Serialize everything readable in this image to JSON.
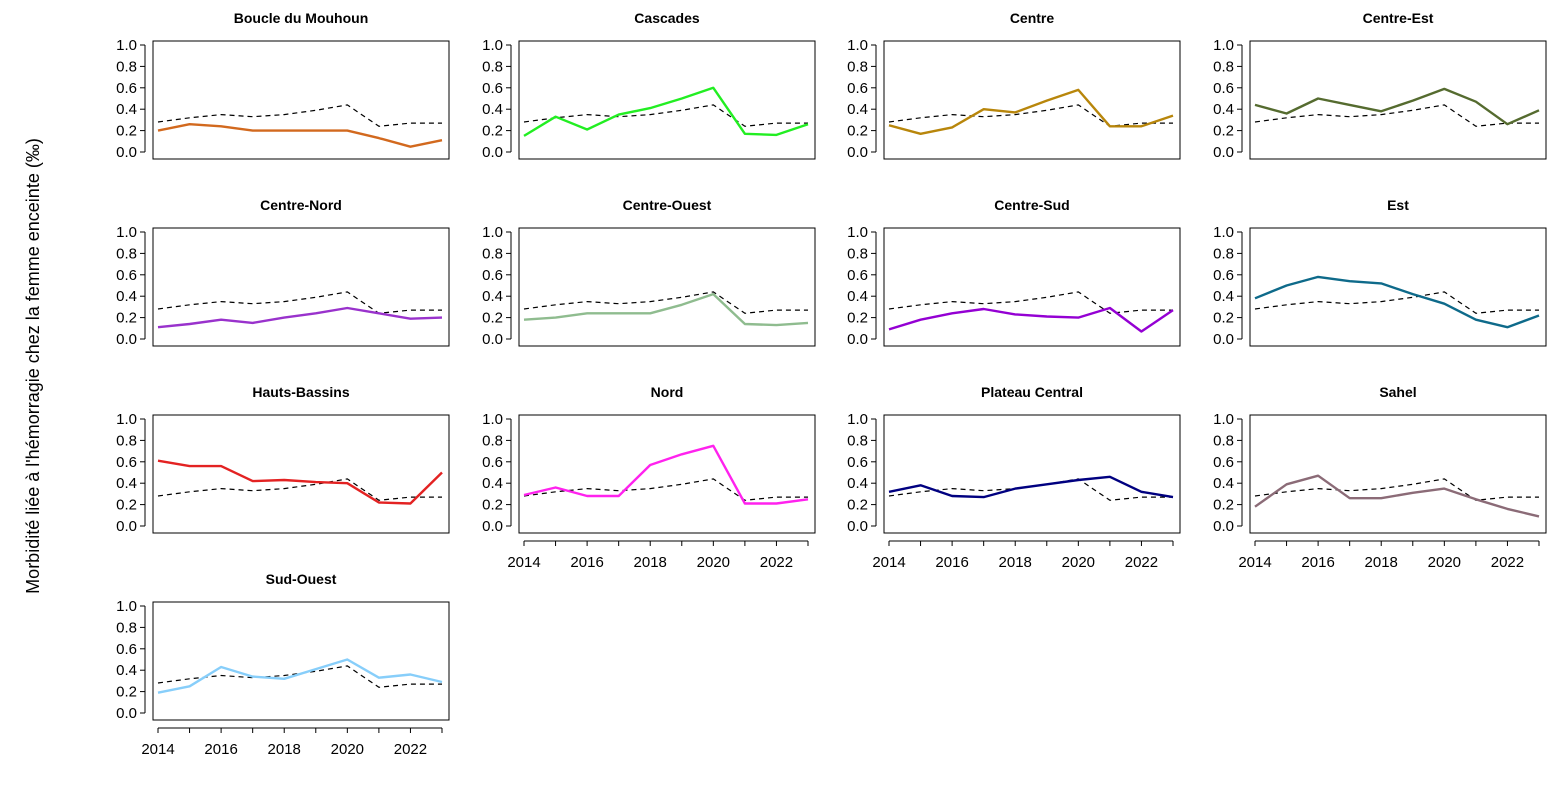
{
  "ylabel": "Morbidité liée à l'hémorragie chez la femme enceinte (‰)",
  "chart_data": {
    "type": "line",
    "x": [
      2014,
      2015,
      2016,
      2017,
      2018,
      2019,
      2020,
      2021,
      2022,
      2023
    ],
    "x_tick_labels": [
      "2014",
      "2016",
      "2018",
      "2020",
      "2022"
    ],
    "y_tick_labels": [
      "0.0",
      "0.2",
      "0.4",
      "0.6",
      "0.8",
      "1.0"
    ],
    "ylim": [
      0,
      1.0
    ],
    "xlim": [
      2014,
      2023
    ],
    "grid": false,
    "reference_series": {
      "style": "dashed",
      "color": "#000000",
      "values": [
        0.28,
        0.32,
        0.35,
        0.33,
        0.35,
        0.39,
        0.44,
        0.24,
        0.27,
        0.27
      ]
    },
    "panels": [
      {
        "title": "Boucle du Mouhoun",
        "color": "#D2691E",
        "values": [
          0.2,
          0.26,
          0.24,
          0.2,
          0.2,
          0.2,
          0.2,
          0.13,
          0.05,
          0.11
        ],
        "show_xaxis": false
      },
      {
        "title": "Cascades",
        "color": "#22EE22",
        "values": [
          0.15,
          0.33,
          0.21,
          0.35,
          0.41,
          0.5,
          0.6,
          0.17,
          0.16,
          0.26
        ],
        "show_xaxis": false
      },
      {
        "title": "Centre",
        "color": "#B8860B",
        "values": [
          0.25,
          0.17,
          0.23,
          0.4,
          0.37,
          0.48,
          0.58,
          0.24,
          0.24,
          0.34
        ],
        "show_xaxis": false
      },
      {
        "title": "Centre-Est",
        "color": "#556B2F",
        "values": [
          0.44,
          0.36,
          0.5,
          0.44,
          0.38,
          0.48,
          0.59,
          0.47,
          0.26,
          0.39
        ],
        "show_xaxis": false
      },
      {
        "title": "Centre-Nord",
        "color": "#9932CC",
        "values": [
          0.11,
          0.14,
          0.18,
          0.15,
          0.2,
          0.24,
          0.29,
          0.24,
          0.19,
          0.2
        ],
        "show_xaxis": false
      },
      {
        "title": "Centre-Ouest",
        "color": "#8FBC8F",
        "values": [
          0.18,
          0.2,
          0.24,
          0.24,
          0.24,
          0.32,
          0.42,
          0.14,
          0.13,
          0.15
        ],
        "show_xaxis": false
      },
      {
        "title": "Centre-Sud",
        "color": "#9400D3",
        "values": [
          0.09,
          0.18,
          0.24,
          0.28,
          0.23,
          0.21,
          0.2,
          0.29,
          0.07,
          0.27
        ],
        "show_xaxis": false
      },
      {
        "title": "Est",
        "color": "#0E6A8A",
        "values": [
          0.38,
          0.5,
          0.58,
          0.54,
          0.52,
          0.42,
          0.33,
          0.18,
          0.11,
          0.22
        ],
        "show_xaxis": false
      },
      {
        "title": "Hauts-Bassins",
        "color": "#E32222",
        "values": [
          0.61,
          0.56,
          0.56,
          0.42,
          0.43,
          0.41,
          0.4,
          0.22,
          0.21,
          0.5
        ],
        "show_xaxis": false
      },
      {
        "title": "Nord",
        "color": "#FF22EE",
        "values": [
          0.29,
          0.36,
          0.28,
          0.28,
          0.57,
          0.67,
          0.75,
          0.21,
          0.21,
          0.25
        ],
        "show_xaxis": true
      },
      {
        "title": "Plateau Central",
        "color": "#000080",
        "values": [
          0.32,
          0.38,
          0.28,
          0.27,
          0.35,
          0.39,
          0.43,
          0.46,
          0.32,
          0.27
        ],
        "show_xaxis": true
      },
      {
        "title": "Sahel",
        "color": "#8B6B77",
        "values": [
          0.18,
          0.39,
          0.47,
          0.26,
          0.26,
          0.31,
          0.35,
          0.25,
          0.16,
          0.09
        ],
        "show_xaxis": true
      },
      {
        "title": "Sud-Ouest",
        "color": "#87CEFA",
        "values": [
          0.19,
          0.25,
          0.43,
          0.34,
          0.32,
          0.41,
          0.5,
          0.33,
          0.36,
          0.29
        ],
        "show_xaxis": true
      }
    ]
  }
}
